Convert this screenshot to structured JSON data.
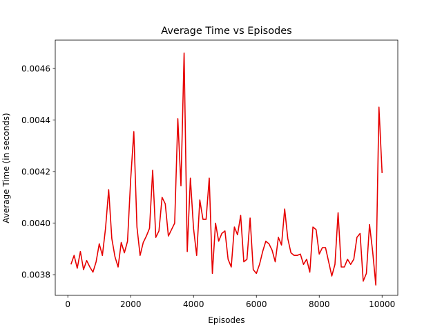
{
  "chart_data": {
    "type": "line",
    "title": "Average Time vs Episodes",
    "xlabel": "Episodes",
    "ylabel": "Average Time (in seconds)",
    "xlim": [
      -400,
      10500
    ],
    "ylim": [
      0.00372,
      0.00471
    ],
    "xticks": [
      0,
      2000,
      4000,
      6000,
      8000,
      10000
    ],
    "xtick_labels": [
      "0",
      "2000",
      "4000",
      "6000",
      "8000",
      "10000"
    ],
    "yticks": [
      0.0038,
      0.004,
      0.0042,
      0.0044,
      0.0046
    ],
    "ytick_labels": [
      "0.0038",
      "0.0040",
      "0.0042",
      "0.0044",
      "0.0046"
    ],
    "grid": false,
    "legend": "none",
    "series": [
      {
        "color": "#e60000",
        "x": [
          100,
          200,
          300,
          400,
          500,
          600,
          700,
          800,
          900,
          1000,
          1100,
          1200,
          1300,
          1400,
          1500,
          1600,
          1700,
          1800,
          1900,
          2000,
          2100,
          2200,
          2300,
          2400,
          2500,
          2600,
          2700,
          2800,
          2900,
          3000,
          3100,
          3200,
          3300,
          3400,
          3500,
          3600,
          3700,
          3800,
          3900,
          4000,
          4100,
          4200,
          4300,
          4400,
          4500,
          4600,
          4700,
          4800,
          4900,
          5000,
          5100,
          5200,
          5300,
          5400,
          5500,
          5600,
          5700,
          5800,
          5900,
          6000,
          6100,
          6200,
          6300,
          6400,
          6500,
          6600,
          6700,
          6800,
          6900,
          7000,
          7100,
          7200,
          7300,
          7400,
          7500,
          7600,
          7700,
          7800,
          7900,
          8000,
          8100,
          8200,
          8300,
          8400,
          8500,
          8600,
          8700,
          8800,
          8900,
          9000,
          9100,
          9200,
          9300,
          9400,
          9500,
          9600,
          9700,
          9800,
          9900,
          10000
        ],
        "y": [
          0.00384,
          0.003875,
          0.003825,
          0.00389,
          0.00382,
          0.003855,
          0.00383,
          0.00381,
          0.00385,
          0.00392,
          0.003875,
          0.00398,
          0.00413,
          0.00394,
          0.00387,
          0.00383,
          0.003925,
          0.003885,
          0.00393,
          0.00417,
          0.004355,
          0.003985,
          0.003875,
          0.003925,
          0.00395,
          0.00398,
          0.004205,
          0.003945,
          0.00397,
          0.0041,
          0.004075,
          0.00395,
          0.003975,
          0.004,
          0.004405,
          0.004145,
          0.00466,
          0.00389,
          0.004175,
          0.00398,
          0.003875,
          0.00409,
          0.004015,
          0.004015,
          0.004175,
          0.003805,
          0.004,
          0.00393,
          0.00396,
          0.00397,
          0.00386,
          0.00383,
          0.003985,
          0.003955,
          0.00403,
          0.00385,
          0.00386,
          0.00402,
          0.00382,
          0.003805,
          0.00384,
          0.00389,
          0.00393,
          0.00392,
          0.003895,
          0.00385,
          0.003945,
          0.003915,
          0.004055,
          0.00394,
          0.003885,
          0.003875,
          0.003875,
          0.00388,
          0.00384,
          0.00386,
          0.00381,
          0.003985,
          0.003975,
          0.00388,
          0.003905,
          0.003905,
          0.00385,
          0.003795,
          0.00384,
          0.00404,
          0.00383,
          0.00383,
          0.00386,
          0.00384,
          0.00386,
          0.003945,
          0.00396,
          0.003775,
          0.003805,
          0.003995,
          0.00389,
          0.00376,
          0.00445,
          0.004195
        ]
      }
    ]
  }
}
